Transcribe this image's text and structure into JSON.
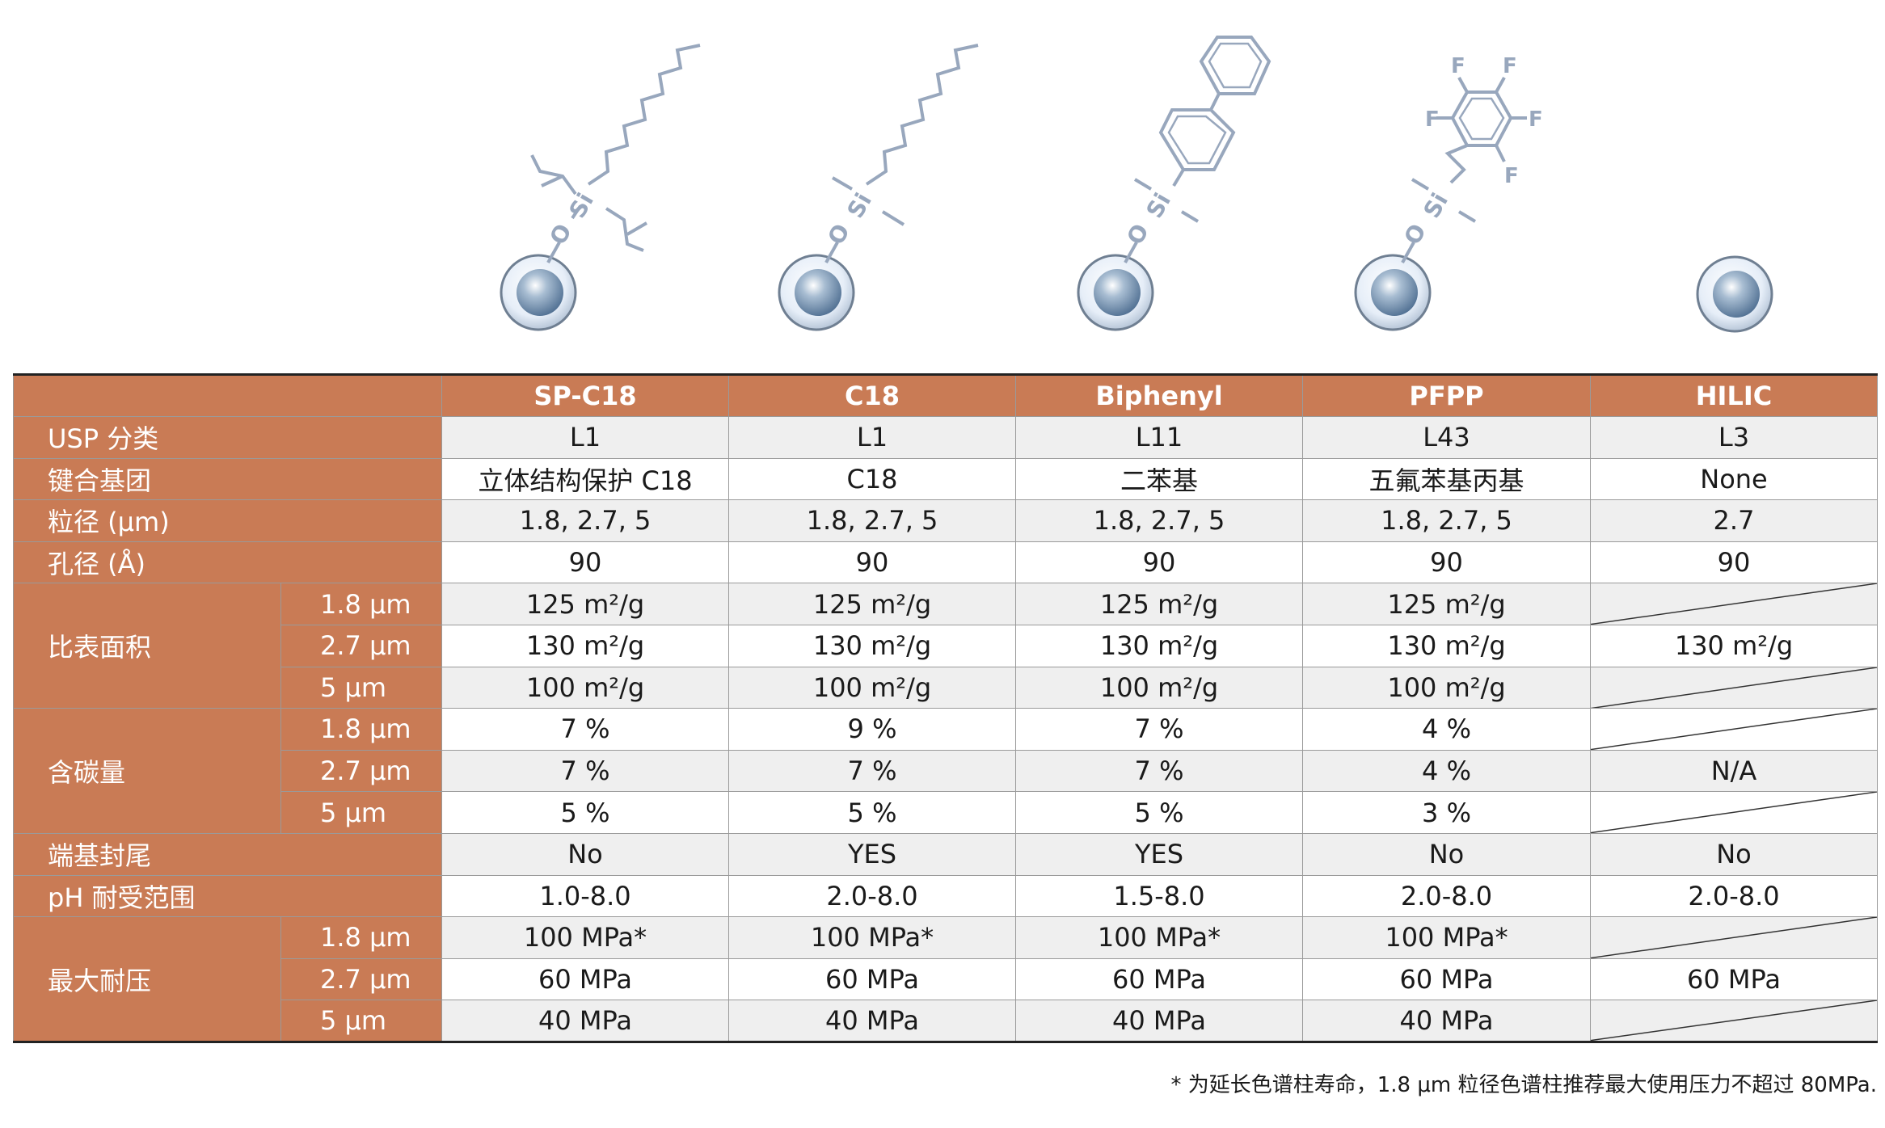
{
  "columns": [
    "SP-C18",
    "C18",
    "Biphenyl",
    "PFPP",
    "HILIC"
  ],
  "structure_atoms": {
    "si": "Si",
    "o": "O",
    "f": "F"
  },
  "rows": {
    "usp": {
      "label": "USP 分类",
      "values": [
        "L1",
        "L1",
        "L11",
        "L43",
        "L3"
      ]
    },
    "bond": {
      "label": "键合基团",
      "values": [
        "立体结构保护 C18",
        "C18",
        "二苯基",
        "五氟苯基丙基",
        "None"
      ]
    },
    "particle": {
      "label": "粒径 (μm)",
      "values": [
        "1.8, 2.7, 5",
        "1.8, 2.7, 5",
        "1.8, 2.7, 5",
        "1.8, 2.7, 5",
        "2.7"
      ]
    },
    "pore": {
      "label": "孔径 (Å)",
      "values": [
        "90",
        "90",
        "90",
        "90",
        "90"
      ]
    },
    "surface": {
      "label": "比表面积",
      "sub": [
        {
          "size": "1.8 μm",
          "values": [
            "125 m²/g",
            "125 m²/g",
            "125 m²/g",
            "125 m²/g",
            ""
          ]
        },
        {
          "size": "2.7 μm",
          "values": [
            "130 m²/g",
            "130 m²/g",
            "130 m²/g",
            "130 m²/g",
            "130 m²/g"
          ]
        },
        {
          "size": "5 μm",
          "values": [
            "100 m²/g",
            "100 m²/g",
            "100 m²/g",
            "100 m²/g",
            ""
          ]
        }
      ]
    },
    "carbon": {
      "label": "含碳量",
      "sub": [
        {
          "size": "1.8 μm",
          "values": [
            "7 %",
            "9 %",
            "7 %",
            "4 %",
            ""
          ]
        },
        {
          "size": "2.7 μm",
          "values": [
            "7 %",
            "7 %",
            "7 %",
            "4 %",
            "N/A"
          ]
        },
        {
          "size": "5 μm",
          "values": [
            "5 %",
            "5 %",
            "5 %",
            "3 %",
            ""
          ]
        }
      ]
    },
    "endcap": {
      "label": "端基封尾",
      "values": [
        "No",
        "YES",
        "YES",
        "No",
        "No"
      ]
    },
    "ph": {
      "label": "pH 耐受范围",
      "values": [
        "1.0-8.0",
        "2.0-8.0",
        "1.5-8.0",
        "2.0-8.0",
        "2.0-8.0"
      ]
    },
    "pressure": {
      "label": "最大耐压",
      "sub": [
        {
          "size": "1.8 μm",
          "values": [
            "100 MPa*",
            "100 MPa*",
            "100 MPa*",
            "100 MPa*",
            ""
          ]
        },
        {
          "size": "2.7 μm",
          "values": [
            "60 MPa",
            "60 MPa",
            "60 MPa",
            "60 MPa",
            "60 MPa"
          ]
        },
        {
          "size": "5 μm",
          "values": [
            "40 MPa",
            "40 MPa",
            "40 MPa",
            "40 MPa",
            ""
          ]
        }
      ]
    }
  },
  "footnote": "* 为延长色谱柱寿命，1.8 μm 粒径色谱柱推荐最大使用压力不超过 80MPa.",
  "colors": {
    "header": "#c97b55",
    "structure": "#98a7bd",
    "alt_row": "#efefef"
  }
}
